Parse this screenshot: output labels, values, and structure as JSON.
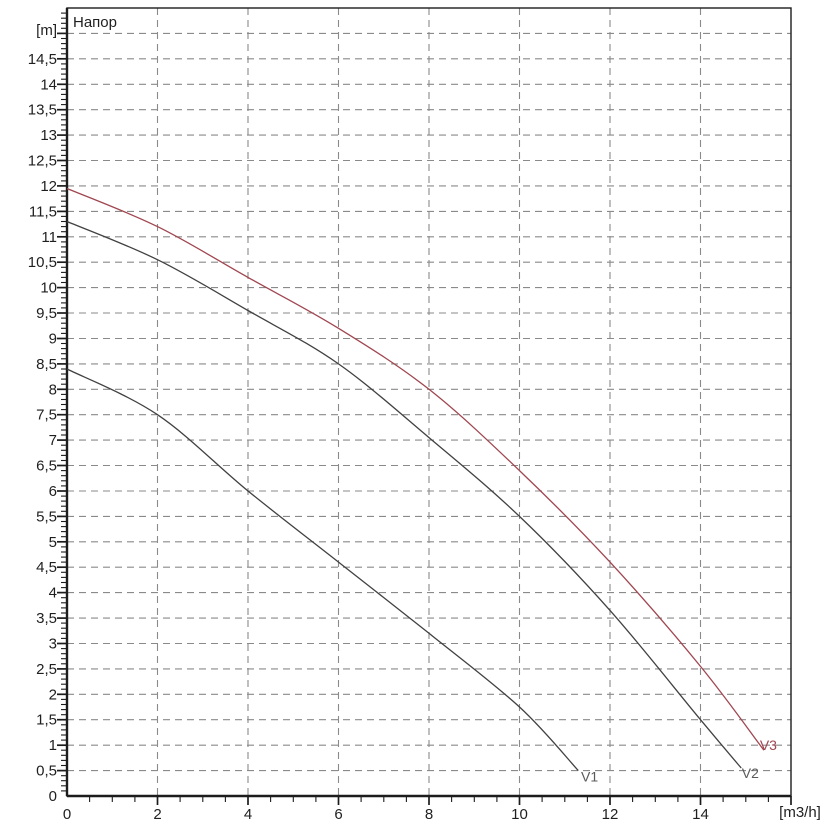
{
  "chart_data": {
    "type": "line",
    "title": "Напор",
    "ylabel": "[m]",
    "xlabel": "[m3/h]",
    "xlim": [
      0,
      16
    ],
    "ylim": [
      0,
      15.5
    ],
    "grid": true,
    "grid_style": "dashed",
    "x_gridline_step": 2,
    "y_gridline_step": 0.5,
    "x_minor_tick_step": 0.5,
    "x_major_tick_step": 2,
    "y_minor_tick_step": 0.1,
    "y_major_tick_step": 0.5,
    "colors": {
      "grid": "#8a8a8a",
      "axis": "#1c1c1c",
      "text": "#1f1f1f",
      "dark_curve": "#414141",
      "red_curve": "#a04650"
    },
    "y_tick_labels": [
      {
        "v": 0,
        "t": "0"
      },
      {
        "v": 0.5,
        "t": "0,5"
      },
      {
        "v": 1,
        "t": "1"
      },
      {
        "v": 1.5,
        "t": "1,5"
      },
      {
        "v": 2,
        "t": "2"
      },
      {
        "v": 2.5,
        "t": "2,5"
      },
      {
        "v": 3,
        "t": "3"
      },
      {
        "v": 3.5,
        "t": "3,5"
      },
      {
        "v": 4,
        "t": "4"
      },
      {
        "v": 4.5,
        "t": "4,5"
      },
      {
        "v": 5,
        "t": "5"
      },
      {
        "v": 5.5,
        "t": "5,5"
      },
      {
        "v": 6,
        "t": "6"
      },
      {
        "v": 6.5,
        "t": "6,5"
      },
      {
        "v": 7,
        "t": "7"
      },
      {
        "v": 7.5,
        "t": "7,5"
      },
      {
        "v": 8,
        "t": "8"
      },
      {
        "v": 8.5,
        "t": "8,5"
      },
      {
        "v": 9,
        "t": "9"
      },
      {
        "v": 9.5,
        "t": "9,5"
      },
      {
        "v": 10,
        "t": "10"
      },
      {
        "v": 10.5,
        "t": "10,5"
      },
      {
        "v": 11,
        "t": "11"
      },
      {
        "v": 11.5,
        "t": "11,5"
      },
      {
        "v": 12,
        "t": "12"
      },
      {
        "v": 12.5,
        "t": "12,5"
      },
      {
        "v": 13,
        "t": "13"
      },
      {
        "v": 13.5,
        "t": "13,5"
      },
      {
        "v": 14,
        "t": "14"
      },
      {
        "v": 14.5,
        "t": "14,5"
      }
    ],
    "x_tick_labels": [
      {
        "v": 0,
        "t": "0"
      },
      {
        "v": 2,
        "t": "2"
      },
      {
        "v": 4,
        "t": "4"
      },
      {
        "v": 6,
        "t": "6"
      },
      {
        "v": 8,
        "t": "8"
      },
      {
        "v": 10,
        "t": "10"
      },
      {
        "v": 12,
        "t": "12"
      },
      {
        "v": 14,
        "t": "14"
      }
    ],
    "series": [
      {
        "name": "V1",
        "color": "#414141",
        "label_color": "#5a5a5a",
        "label_pos": [
          11.55,
          0.38
        ],
        "points": [
          [
            0,
            8.4
          ],
          [
            2,
            7.5
          ],
          [
            4,
            6.0
          ],
          [
            6,
            4.6
          ],
          [
            8,
            3.2
          ],
          [
            10,
            1.75
          ],
          [
            11.3,
            0.5
          ]
        ]
      },
      {
        "name": "V2",
        "color": "#414141",
        "label_color": "#5a5a5a",
        "label_pos": [
          15.1,
          0.45
        ],
        "points": [
          [
            0,
            11.3
          ],
          [
            2,
            10.55
          ],
          [
            4,
            9.55
          ],
          [
            6,
            8.5
          ],
          [
            8,
            7.05
          ],
          [
            10,
            5.5
          ],
          [
            12,
            3.65
          ],
          [
            14,
            1.5
          ],
          [
            14.9,
            0.55
          ]
        ]
      },
      {
        "name": "V3",
        "color": "#a04650",
        "label_color": "#a04650",
        "label_pos": [
          15.5,
          1.0
        ],
        "points": [
          [
            0,
            11.95
          ],
          [
            2,
            11.2
          ],
          [
            4,
            10.2
          ],
          [
            6,
            9.2
          ],
          [
            8,
            8.0
          ],
          [
            10,
            6.4
          ],
          [
            12,
            4.6
          ],
          [
            14,
            2.55
          ],
          [
            15.4,
            0.9
          ]
        ]
      }
    ]
  }
}
